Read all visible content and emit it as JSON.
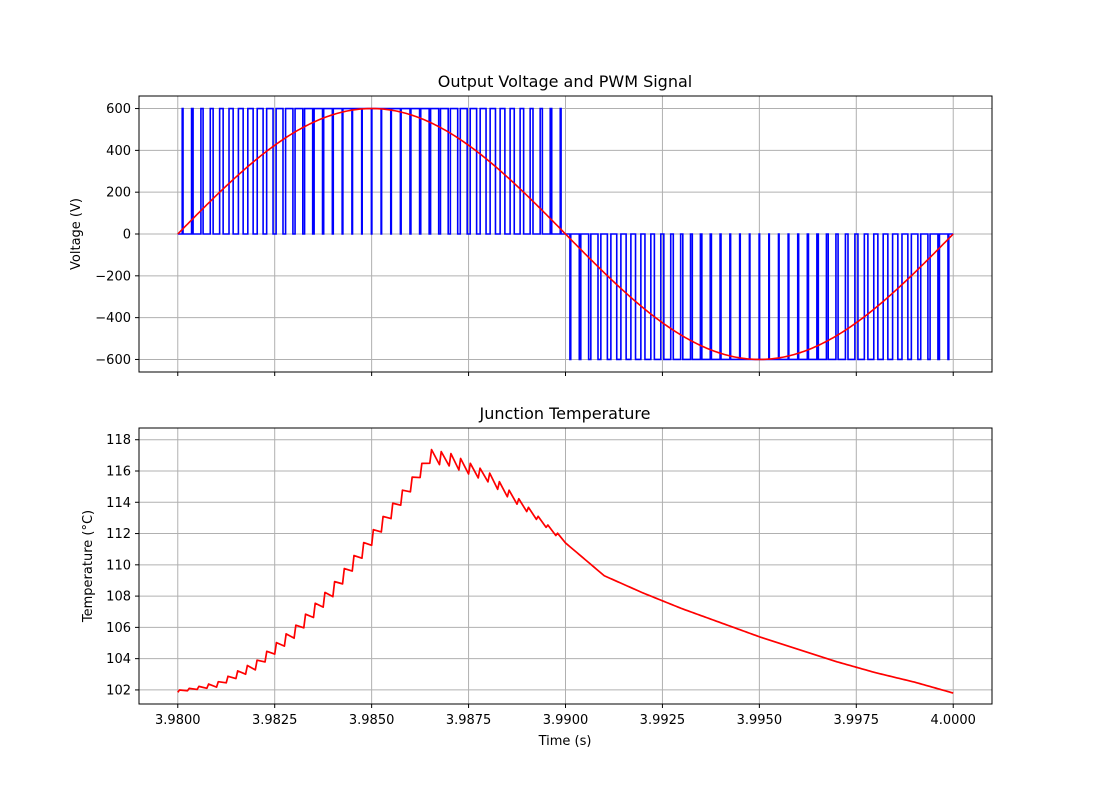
{
  "chart_data": [
    {
      "type": "line",
      "title": "Output Voltage and PWM Signal",
      "xlabel": "",
      "ylabel": "Voltage (V)",
      "xlim": [
        3.979,
        4.001
      ],
      "ylim": [
        -660,
        660
      ],
      "xticks": [
        3.98,
        3.9825,
        3.985,
        3.9875,
        3.99,
        3.9925,
        3.995,
        3.9975,
        4.0
      ],
      "yticks": [
        -600,
        -400,
        -200,
        0,
        200,
        400,
        600
      ],
      "ytick_labels": [
        "−600",
        "−400",
        "−200",
        "0",
        "200",
        "400",
        "600"
      ],
      "grid": true,
      "series": [
        {
          "color": "#0000ff",
          "kind": "pwm",
          "x_start": 3.98,
          "x_end": 4.0,
          "carrier_periods": 80,
          "amplitude": 600,
          "fundamental_hz": 50,
          "values": "square wave switching between 0 and ±600 V, duty proportional to |sin|"
        },
        {
          "color": "#ff0000",
          "kind": "sine",
          "x_start": 3.98,
          "x_end": 4.0,
          "amplitude": 600,
          "fundamental_hz": 50,
          "points": [
            [
              3.98,
              0
            ],
            [
              3.9825,
              424
            ],
            [
              3.985,
              600
            ],
            [
              3.9875,
              424
            ],
            [
              3.99,
              0
            ],
            [
              3.9925,
              -424
            ],
            [
              3.995,
              -600
            ],
            [
              3.9975,
              -424
            ],
            [
              4.0,
              0
            ]
          ]
        }
      ]
    },
    {
      "type": "line",
      "title": "Junction Temperature",
      "xlabel": "Time (s)",
      "ylabel": "Temperature (°C)",
      "xlim": [
        3.979,
        4.001
      ],
      "ylim": [
        101.1,
        118.75
      ],
      "xticks": [
        3.98,
        3.9825,
        3.985,
        3.9875,
        3.99,
        3.9925,
        3.995,
        3.9975,
        4.0
      ],
      "xtick_labels": [
        "3.9800",
        "3.9825",
        "3.9850",
        "3.9875",
        "3.9900",
        "3.9925",
        "3.9950",
        "3.9975",
        "4.0000"
      ],
      "yticks": [
        102,
        104,
        106,
        108,
        110,
        112,
        114,
        116,
        118
      ],
      "grid": true,
      "series": [
        {
          "color": "#ff0000",
          "envelope_points": [
            [
              3.98,
              101.9
            ],
            [
              3.981,
              102.3
            ],
            [
              3.982,
              103.5
            ],
            [
              3.983,
              105.6
            ],
            [
              3.984,
              108.3
            ],
            [
              3.985,
              111.6
            ],
            [
              3.986,
              115.0
            ],
            [
              3.9865,
              116.8
            ],
            [
              3.987,
              116.6
            ],
            [
              3.988,
              115.5
            ],
            [
              3.989,
              113.5
            ],
            [
              3.99,
              111.4
            ],
            [
              3.991,
              109.3
            ],
            [
              3.992,
              108.2
            ],
            [
              3.993,
              107.2
            ],
            [
              3.994,
              106.3
            ],
            [
              3.995,
              105.4
            ],
            [
              3.996,
              104.6
            ],
            [
              3.997,
              103.8
            ],
            [
              3.998,
              103.1
            ],
            [
              3.999,
              102.5
            ],
            [
              4.0,
              101.8
            ]
          ],
          "ripple_until": 3.99,
          "ripple_amplitude": 1.0
        }
      ]
    }
  ]
}
